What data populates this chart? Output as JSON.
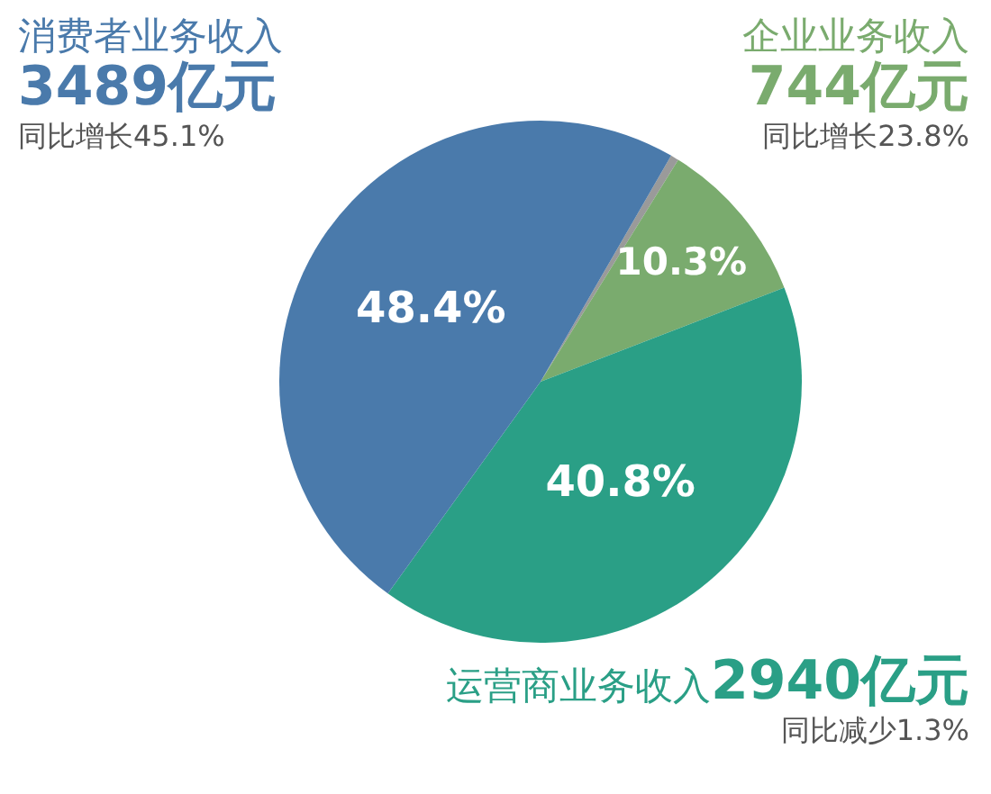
{
  "chart_data": {
    "type": "pie",
    "categories": [
      null,
      "企业业务收入",
      "运营商业务收入",
      "消费者业务收入"
    ],
    "values": [
      0.5,
      10.3,
      40.8,
      48.4
    ],
    "colors": [
      "#9a9a9a",
      "#7aab6e",
      "#2a9f86",
      "#4a7aab"
    ],
    "value_labels": [
      null,
      "10.3%",
      "40.8%",
      "48.4%"
    ],
    "legend": false,
    "annotations": [
      "3489亿元",
      "同比增长45.1%",
      "744亿元",
      "同比增长23.8%",
      "2940亿元",
      "同比减少1.3%"
    ]
  }
}
